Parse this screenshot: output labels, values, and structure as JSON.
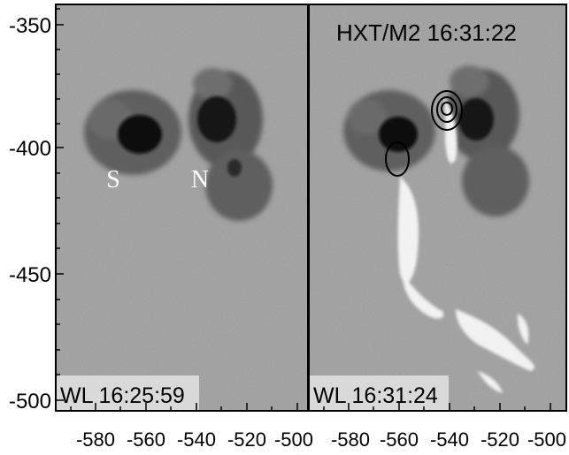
{
  "panels": [
    {
      "id": "left",
      "time_label": "WL 16:25:59",
      "labels": [
        "S",
        "N"
      ]
    },
    {
      "id": "right",
      "time_label": "WL 16:31:24",
      "title": "HXT/M2 16:31:22"
    }
  ],
  "axes": {
    "y_ticks": [
      "-350",
      "-400",
      "-450",
      "-500"
    ],
    "x_ticks": [
      "-580",
      "-560",
      "-540",
      "-520",
      "-500"
    ]
  },
  "colors": {
    "photosphere": "#a9a9a9",
    "penumbra": "#5a5a5a",
    "umbra": "#0d0d0d",
    "flare_ribbon": "#f2f2f2",
    "label_box": "#d9d9d9",
    "contour": "#000000"
  }
}
